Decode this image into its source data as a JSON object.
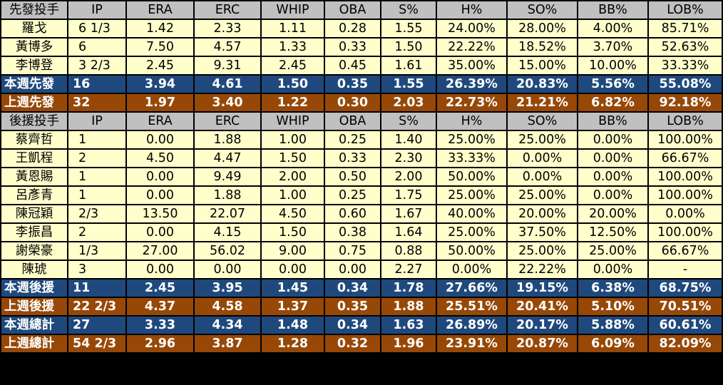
{
  "columns": [
    "IP",
    "ERA",
    "ERC",
    "WHIP",
    "OBA",
    "S%",
    "H%",
    "SO%",
    "BB%",
    "LOB%"
  ],
  "starters": {
    "header": "先發投手",
    "rows": [
      {
        "name": "羅戈",
        "cells": [
          "6 1/3",
          "1.42",
          "2.33",
          "1.11",
          "0.28",
          "1.55",
          "24.00%",
          "28.00%",
          "4.00%",
          "85.71%"
        ]
      },
      {
        "name": "黃博多",
        "cells": [
          "6",
          "7.50",
          "4.57",
          "1.33",
          "0.33",
          "1.50",
          "22.22%",
          "18.52%",
          "3.70%",
          "52.63%"
        ]
      },
      {
        "name": "李博登",
        "cells": [
          "3 2/3",
          "2.45",
          "9.31",
          "2.45",
          "0.45",
          "1.61",
          "35.00%",
          "15.00%",
          "10.00%",
          "33.33%"
        ]
      }
    ],
    "this_week": {
      "name": "本週先發",
      "cells": [
        "16",
        "3.94",
        "4.61",
        "1.50",
        "0.35",
        "1.55",
        "26.39%",
        "20.83%",
        "5.56%",
        "55.08%"
      ]
    },
    "last_week": {
      "name": "上週先發",
      "cells": [
        "32",
        "1.97",
        "3.40",
        "1.22",
        "0.30",
        "2.03",
        "22.73%",
        "21.21%",
        "6.82%",
        "92.18%"
      ]
    }
  },
  "relievers": {
    "header": "後援投手",
    "rows": [
      {
        "name": "蔡齊哲",
        "cells": [
          "1",
          "0.00",
          "1.88",
          "1.00",
          "0.25",
          "1.40",
          "25.00%",
          "25.00%",
          "0.00%",
          "100.00%"
        ]
      },
      {
        "name": "王凱程",
        "cells": [
          "2",
          "4.50",
          "4.47",
          "1.50",
          "0.33",
          "2.30",
          "33.33%",
          "0.00%",
          "0.00%",
          "66.67%"
        ]
      },
      {
        "name": "黃恩賜",
        "cells": [
          "1",
          "0.00",
          "9.49",
          "2.00",
          "0.50",
          "2.00",
          "50.00%",
          "0.00%",
          "0.00%",
          "100.00%"
        ]
      },
      {
        "name": "呂彥青",
        "cells": [
          "1",
          "0.00",
          "1.88",
          "1.00",
          "0.25",
          "1.75",
          "25.00%",
          "25.00%",
          "0.00%",
          "100.00%"
        ]
      },
      {
        "name": "陳冠穎",
        "cells": [
          "2/3",
          "13.50",
          "22.07",
          "4.50",
          "0.60",
          "1.67",
          "40.00%",
          "20.00%",
          "20.00%",
          "0.00%"
        ]
      },
      {
        "name": "李振昌",
        "cells": [
          "2",
          "0.00",
          "4.15",
          "1.50",
          "0.38",
          "1.64",
          "25.00%",
          "37.50%",
          "12.50%",
          "100.00%"
        ]
      },
      {
        "name": "謝榮豪",
        "cells": [
          "1/3",
          "27.00",
          "56.02",
          "9.00",
          "0.75",
          "0.88",
          "50.00%",
          "25.00%",
          "25.00%",
          "66.67%"
        ]
      },
      {
        "name": "陳琥",
        "cells": [
          "3",
          "0.00",
          "0.00",
          "0.00",
          "0.00",
          "2.27",
          "0.00%",
          "22.22%",
          "0.00%",
          "-"
        ]
      }
    ],
    "this_week": {
      "name": "本週後援",
      "cells": [
        "11",
        "2.45",
        "3.95",
        "1.45",
        "0.34",
        "1.78",
        "27.66%",
        "19.15%",
        "6.38%",
        "68.75%"
      ]
    },
    "last_week": {
      "name": "上週後援",
      "cells": [
        "22 2/3",
        "4.37",
        "4.58",
        "1.37",
        "0.35",
        "1.88",
        "25.51%",
        "20.41%",
        "5.10%",
        "70.51%"
      ]
    }
  },
  "totals": {
    "this_week": {
      "name": "本週總計",
      "cells": [
        "27",
        "3.33",
        "4.34",
        "1.48",
        "0.34",
        "1.63",
        "26.89%",
        "20.17%",
        "5.88%",
        "60.61%"
      ]
    },
    "last_week": {
      "name": "上週總計",
      "cells": [
        "54 2/3",
        "2.96",
        "3.87",
        "1.28",
        "0.32",
        "1.96",
        "23.91%",
        "20.87%",
        "6.09%",
        "82.09%"
      ]
    }
  },
  "colors": {
    "header_bg": "#c0c0c0",
    "row_bg": "#ffffcc",
    "this_week_bg": "#1f497d",
    "last_week_bg": "#974806"
  }
}
